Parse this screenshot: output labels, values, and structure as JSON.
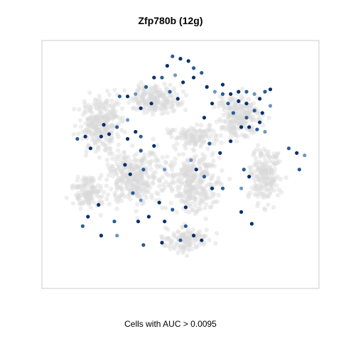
{
  "chart_data": {
    "type": "scatter",
    "title": "Zfp780b (12g)",
    "xlabel": "Cells with AUC > 0.0095",
    "ylabel": "",
    "axes_shown": false,
    "grid": false,
    "legend": "none",
    "colors": {
      "background_cells": "#d9d9d9",
      "highlight_dark": "#08306b",
      "highlight_mid": "#2b5c94",
      "highlight_light": "#6f95bf",
      "panel_border": "#cccccc"
    },
    "series": [
      {
        "name": "",
        "role": "all-cells",
        "color": "#d9d9d9",
        "regions": [
          {
            "cx": 0.2,
            "cy": 0.32,
            "rx": 0.13,
            "ry": 0.18,
            "n": 260
          },
          {
            "cx": 0.4,
            "cy": 0.22,
            "rx": 0.16,
            "ry": 0.1,
            "n": 200
          },
          {
            "cx": 0.33,
            "cy": 0.55,
            "rx": 0.18,
            "ry": 0.2,
            "n": 320
          },
          {
            "cx": 0.55,
            "cy": 0.58,
            "rx": 0.16,
            "ry": 0.2,
            "n": 300
          },
          {
            "cx": 0.72,
            "cy": 0.3,
            "rx": 0.14,
            "ry": 0.16,
            "n": 230
          },
          {
            "cx": 0.82,
            "cy": 0.55,
            "rx": 0.1,
            "ry": 0.2,
            "n": 190
          },
          {
            "cx": 0.55,
            "cy": 0.38,
            "rx": 0.14,
            "ry": 0.08,
            "n": 120
          },
          {
            "cx": 0.52,
            "cy": 0.82,
            "rx": 0.13,
            "ry": 0.08,
            "n": 120
          },
          {
            "cx": 0.15,
            "cy": 0.62,
            "rx": 0.1,
            "ry": 0.12,
            "n": 130
          }
        ]
      },
      {
        "name": "",
        "role": "cells-above-threshold",
        "color": "#08306b",
        "points": [
          [
            0.47,
            0.04
          ],
          [
            0.5,
            0.05
          ],
          [
            0.53,
            0.06
          ],
          [
            0.55,
            0.09
          ],
          [
            0.45,
            0.08
          ],
          [
            0.48,
            0.12
          ],
          [
            0.43,
            0.13
          ],
          [
            0.51,
            0.15
          ],
          [
            0.4,
            0.13
          ],
          [
            0.37,
            0.17
          ],
          [
            0.33,
            0.2
          ],
          [
            0.3,
            0.21
          ],
          [
            0.27,
            0.21
          ],
          [
            0.35,
            0.26
          ],
          [
            0.39,
            0.24
          ],
          [
            0.46,
            0.19
          ],
          [
            0.49,
            0.22
          ],
          [
            0.55,
            0.13
          ],
          [
            0.58,
            0.11
          ],
          [
            0.6,
            0.17
          ],
          [
            0.63,
            0.19
          ],
          [
            0.66,
            0.2
          ],
          [
            0.69,
            0.2
          ],
          [
            0.72,
            0.19
          ],
          [
            0.75,
            0.19
          ],
          [
            0.78,
            0.2
          ],
          [
            0.8,
            0.22
          ],
          [
            0.82,
            0.19
          ],
          [
            0.84,
            0.18
          ],
          [
            0.66,
            0.16
          ],
          [
            0.68,
            0.24
          ],
          [
            0.72,
            0.23
          ],
          [
            0.75,
            0.24
          ],
          [
            0.78,
            0.27
          ],
          [
            0.81,
            0.28
          ],
          [
            0.84,
            0.25
          ],
          [
            0.7,
            0.28
          ],
          [
            0.73,
            0.34
          ],
          [
            0.76,
            0.34
          ],
          [
            0.79,
            0.35
          ],
          [
            0.82,
            0.36
          ],
          [
            0.8,
            0.32
          ],
          [
            0.75,
            0.3
          ],
          [
            0.62,
            0.24
          ],
          [
            0.59,
            0.3
          ],
          [
            0.61,
            0.41
          ],
          [
            0.69,
            0.4
          ],
          [
            0.65,
            0.45
          ],
          [
            0.74,
            0.52
          ],
          [
            0.76,
            0.55
          ],
          [
            0.73,
            0.6
          ],
          [
            0.66,
            0.6
          ],
          [
            0.62,
            0.6
          ],
          [
            0.56,
            0.52
          ],
          [
            0.59,
            0.55
          ],
          [
            0.54,
            0.48
          ],
          [
            0.52,
            0.68
          ],
          [
            0.52,
            0.76
          ],
          [
            0.55,
            0.8
          ],
          [
            0.58,
            0.82
          ],
          [
            0.5,
            0.82
          ],
          [
            0.73,
            0.7
          ],
          [
            0.77,
            0.75
          ],
          [
            0.91,
            0.43
          ],
          [
            0.94,
            0.45
          ],
          [
            0.97,
            0.46
          ],
          [
            0.95,
            0.52
          ],
          [
            0.2,
            0.38
          ],
          [
            0.23,
            0.37
          ],
          [
            0.26,
            0.34
          ],
          [
            0.3,
            0.31
          ],
          [
            0.33,
            0.36
          ],
          [
            0.35,
            0.38
          ],
          [
            0.3,
            0.39
          ],
          [
            0.14,
            0.38
          ],
          [
            0.11,
            0.39
          ],
          [
            0.16,
            0.43
          ],
          [
            0.21,
            0.33
          ],
          [
            0.35,
            0.44
          ],
          [
            0.4,
            0.42
          ],
          [
            0.44,
            0.52
          ],
          [
            0.36,
            0.52
          ],
          [
            0.31,
            0.54
          ],
          [
            0.29,
            0.5
          ],
          [
            0.32,
            0.62
          ],
          [
            0.35,
            0.65
          ],
          [
            0.42,
            0.66
          ],
          [
            0.47,
            0.69
          ],
          [
            0.38,
            0.72
          ],
          [
            0.34,
            0.74
          ],
          [
            0.25,
            0.74
          ],
          [
            0.19,
            0.67
          ],
          [
            0.15,
            0.72
          ],
          [
            0.13,
            0.76
          ],
          [
            0.2,
            0.8
          ],
          [
            0.26,
            0.8
          ],
          [
            0.36,
            0.84
          ],
          [
            0.43,
            0.83
          ],
          [
            0.44,
            0.74
          ]
        ]
      }
    ]
  }
}
